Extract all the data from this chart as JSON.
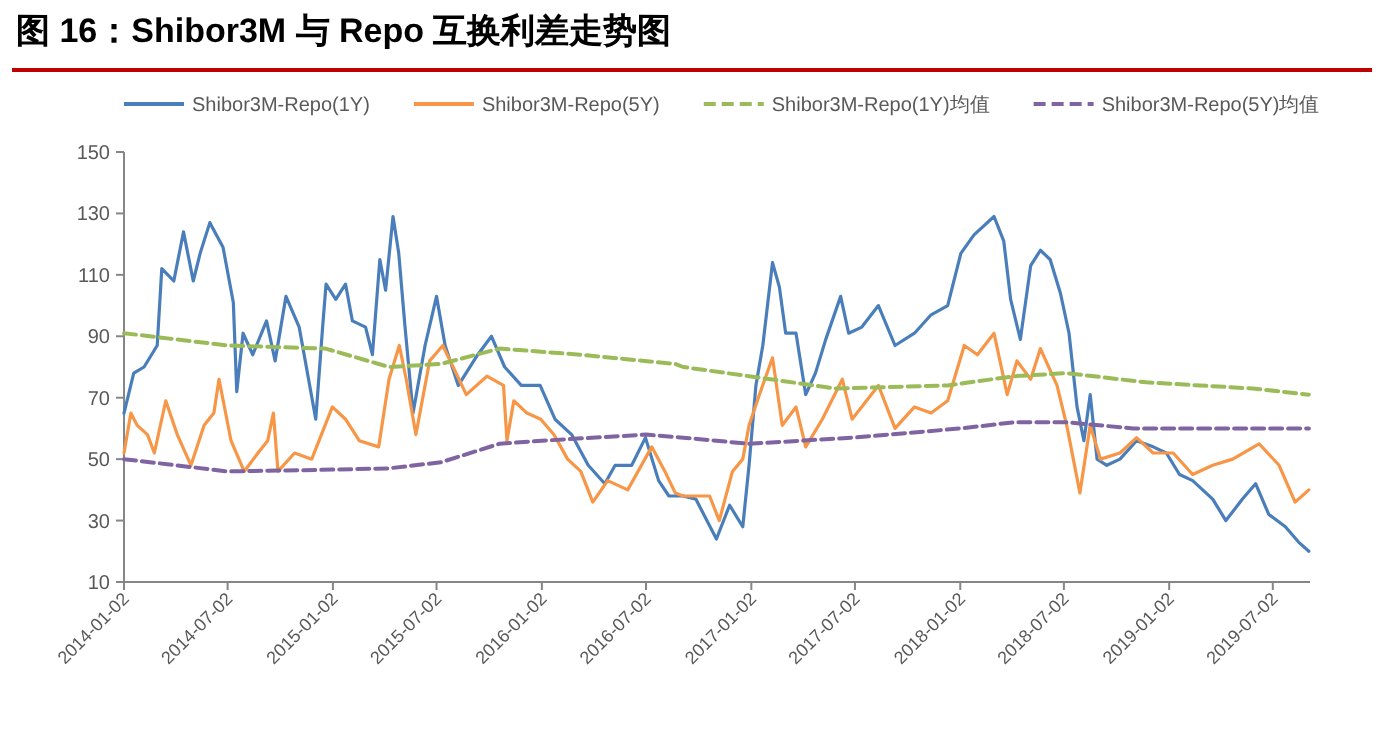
{
  "chart_data": {
    "type": "line",
    "title": "图 16：Shibor3M 与 Repo 互换利差走势图",
    "xlim": [
      "2014-01-02",
      "2019-09-05"
    ],
    "xticks": [
      "2014-01-02",
      "2014-07-02",
      "2015-01-02",
      "2015-07-02",
      "2016-01-02",
      "2016-07-02",
      "2017-01-02",
      "2017-07-02",
      "2018-01-02",
      "2018-07-02",
      "2019-01-02",
      "2019-07-02"
    ],
    "ylim": [
      10,
      150
    ],
    "yticks": [
      10,
      30,
      50,
      70,
      90,
      110,
      130,
      150
    ],
    "grid": false,
    "legend": "top",
    "series": [
      {
        "name": "Shibor3M-Repo(1Y)",
        "color": "#4a7ebb",
        "line_style": "solid",
        "x": [
          "2014-01-02",
          "2014-01-19",
          "2014-02-06",
          "2014-03-01",
          "2014-03-09",
          "2014-03-30",
          "2014-04-16",
          "2014-05-03",
          "2014-05-15",
          "2014-06-01",
          "2014-06-24",
          "2014-07-12",
          "2014-07-18",
          "2014-07-29",
          "2014-08-15",
          "2014-09-08",
          "2014-09-23",
          "2014-10-12",
          "2014-11-04",
          "2014-12-03",
          "2014-12-15",
          "2014-12-21",
          "2015-01-07",
          "2015-01-24",
          "2015-02-05",
          "2015-02-28",
          "2015-03-12",
          "2015-03-25",
          "2015-04-04",
          "2015-04-17",
          "2015-04-27",
          "2015-05-08",
          "2015-05-22",
          "2015-06-12",
          "2015-07-02",
          "2015-07-17",
          "2015-08-09",
          "2015-09-12",
          "2015-10-06",
          "2015-10-29",
          "2015-11-27",
          "2015-12-30",
          "2016-01-25",
          "2016-02-23",
          "2016-03-23",
          "2016-04-21",
          "2016-05-09",
          "2016-06-07",
          "2016-07-01",
          "2016-07-24",
          "2016-08-11",
          "2016-09-05",
          "2016-09-27",
          "2016-11-02",
          "2016-11-25",
          "2016-12-18",
          "2016-12-29",
          "2017-01-10",
          "2017-01-22",
          "2017-02-08",
          "2017-02-20",
          "2017-03-03",
          "2017-03-21",
          "2017-04-07",
          "2017-04-24",
          "2017-05-12",
          "2017-06-07",
          "2017-06-21",
          "2017-07-14",
          "2017-08-12",
          "2017-09-10",
          "2017-10-14",
          "2017-11-12",
          "2017-12-11",
          "2018-01-03",
          "2018-01-26",
          "2018-03-02",
          "2018-03-19",
          "2018-03-31",
          "2018-04-17",
          "2018-05-05",
          "2018-05-22",
          "2018-06-08",
          "2018-06-26",
          "2018-07-11",
          "2018-07-25",
          "2018-08-06",
          "2018-08-17",
          "2018-08-29",
          "2018-09-15",
          "2018-10-08",
          "2018-11-06",
          "2018-12-05",
          "2018-12-28",
          "2019-01-20",
          "2019-02-12",
          "2019-03-19",
          "2019-04-11",
          "2019-05-10",
          "2019-06-02",
          "2019-06-25",
          "2019-07-24",
          "2019-08-16",
          "2019-09-03"
        ],
        "values": [
          65,
          78,
          80,
          87,
          112,
          108,
          124,
          108,
          117,
          127,
          119,
          101,
          72,
          91,
          84,
          95,
          82,
          103,
          93,
          63,
          93,
          107,
          102,
          107,
          95,
          93,
          84,
          115,
          105,
          129,
          117,
          93,
          65,
          87,
          103,
          87,
          74,
          84,
          90,
          80,
          74,
          74,
          63,
          58,
          48,
          42,
          48,
          48,
          57,
          43,
          38,
          38,
          37,
          24,
          35,
          28,
          48,
          74,
          87,
          114,
          106,
          91,
          91,
          71,
          78,
          89,
          103,
          91,
          93,
          100,
          87,
          91,
          97,
          100,
          117,
          123,
          129,
          121,
          102,
          89,
          113,
          118,
          115,
          104,
          91,
          67,
          56,
          71,
          50,
          48,
          50,
          56,
          54,
          52,
          45,
          43,
          37,
          30,
          37,
          42,
          32,
          28,
          23,
          20
        ]
      },
      {
        "name": "Shibor3M-Repo(5Y)",
        "color": "#f79646",
        "line_style": "solid",
        "x": [
          "2014-01-02",
          "2014-01-14",
          "2014-01-25",
          "2014-02-12",
          "2014-02-24",
          "2014-03-16",
          "2014-04-05",
          "2014-04-29",
          "2014-05-22",
          "2014-06-08",
          "2014-06-17",
          "2014-07-08",
          "2014-07-31",
          "2014-08-24",
          "2014-09-10",
          "2014-09-20",
          "2014-09-28",
          "2014-10-27",
          "2014-11-26",
          "2015-01-01",
          "2015-01-24",
          "2015-02-17",
          "2015-03-23",
          "2015-04-10",
          "2015-04-28",
          "2015-05-10",
          "2015-05-27",
          "2015-06-20",
          "2015-07-13",
          "2015-07-31",
          "2015-08-23",
          "2015-09-28",
          "2015-10-27",
          "2015-11-02",
          "2015-11-14",
          "2015-12-07",
          "2015-12-31",
          "2016-01-23",
          "2016-02-16",
          "2016-03-10",
          "2016-03-31",
          "2016-04-26",
          "2016-05-31",
          "2016-06-24",
          "2016-07-12",
          "2016-08-04",
          "2016-08-22",
          "2016-09-05",
          "2016-10-21",
          "2016-11-07",
          "2016-11-30",
          "2016-12-18",
          "2016-12-29",
          "2017-01-16",
          "2017-02-08",
          "2017-02-25",
          "2017-03-21",
          "2017-04-07",
          "2017-05-06",
          "2017-06-10",
          "2017-06-27",
          "2017-08-12",
          "2017-09-10",
          "2017-10-14",
          "2017-11-12",
          "2017-12-11",
          "2018-01-09",
          "2018-02-01",
          "2018-03-02",
          "2018-03-25",
          "2018-04-11",
          "2018-05-05",
          "2018-05-22",
          "2018-06-20",
          "2018-07-07",
          "2018-07-30",
          "2018-08-17",
          "2018-09-04",
          "2018-10-08",
          "2018-11-06",
          "2018-12-05",
          "2019-01-09",
          "2019-02-12",
          "2019-03-19",
          "2019-04-23",
          "2019-06-08",
          "2019-07-13",
          "2019-08-10",
          "2019-09-03"
        ],
        "values": [
          52,
          65,
          61,
          58,
          52,
          69,
          58,
          48,
          61,
          65,
          76,
          56,
          46,
          52,
          56,
          65,
          46,
          52,
          50,
          67,
          63,
          56,
          54,
          76,
          87,
          76,
          58,
          82,
          87,
          80,
          71,
          77,
          74,
          56,
          69,
          65,
          63,
          58,
          50,
          46,
          36,
          43,
          40,
          48,
          54,
          46,
          39,
          38,
          38,
          30,
          46,
          50,
          61,
          71,
          83,
          61,
          67,
          54,
          63,
          76,
          63,
          74,
          60,
          67,
          65,
          69,
          87,
          84,
          91,
          71,
          82,
          76,
          86,
          74,
          61,
          39,
          61,
          50,
          52,
          57,
          52,
          52,
          45,
          48,
          50,
          55,
          48,
          36,
          40
        ]
      },
      {
        "name": "Shibor3M-Repo(1Y)均值",
        "color": "#9bbb59",
        "line_style": "dashed",
        "x": [
          "2014-01-02",
          "2014-07-02",
          "2014-12-20",
          "2015-04-10",
          "2015-07-10",
          "2015-10-20",
          "2016-03-10",
          "2016-08-22",
          "2016-09-05",
          "2016-12-29",
          "2017-05-29",
          "2017-12-11",
          "2018-04-06",
          "2018-07-07",
          "2018-11-23",
          "2019-05-28",
          "2019-09-03"
        ],
        "values": [
          91,
          87,
          86,
          80,
          81,
          86,
          84,
          81,
          80,
          77,
          73,
          74,
          77,
          78,
          75,
          73,
          71
        ]
      },
      {
        "name": "Shibor3M-Repo(5Y)均值",
        "color": "#8064a2",
        "line_style": "dashed",
        "x": [
          "2014-01-02",
          "2014-07-02",
          "2014-12-10",
          "2015-04-10",
          "2015-07-10",
          "2015-10-20",
          "2016-01-02",
          "2016-07-02",
          "2016-09-05",
          "2016-12-29",
          "2017-06-28",
          "2018-01-03",
          "2018-04-06",
          "2018-07-07",
          "2018-10-31",
          "2019-09-03"
        ],
        "values": [
          50,
          46,
          46.5,
          47,
          49,
          55,
          56,
          58,
          57,
          55,
          57,
          60,
          62,
          62,
          60,
          60
        ]
      }
    ]
  }
}
